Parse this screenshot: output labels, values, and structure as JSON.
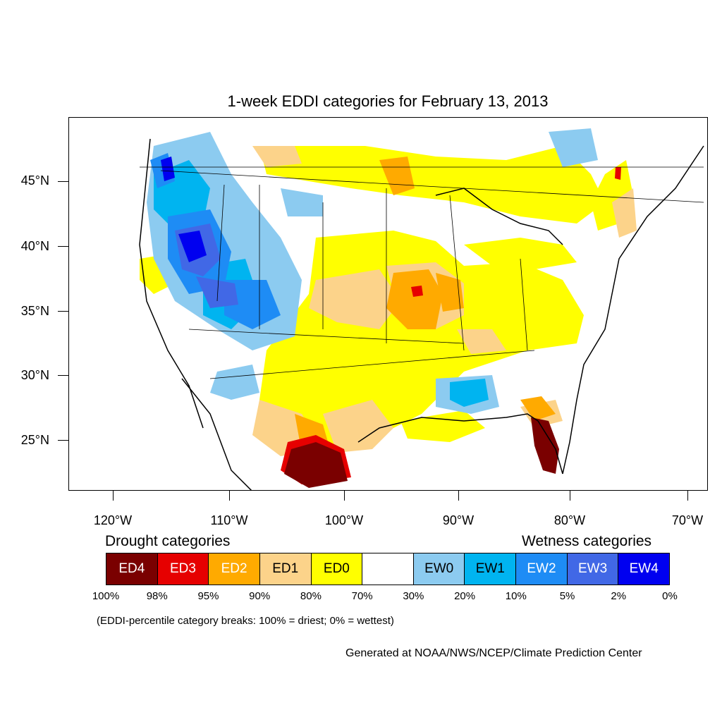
{
  "title": "1-week EDDI categories for February 13, 2013",
  "lat_labels": [
    "45°N",
    "40°N",
    "35°N",
    "30°N",
    "25°N"
  ],
  "lon_labels": [
    "120°W",
    "110°W",
    "100°W",
    "90°W",
    "80°W",
    "70°W"
  ],
  "drought_heading": "Drought categories",
  "wetness_heading": "Wetness categories",
  "legend": [
    {
      "label": "ED4",
      "color": "#7a0000",
      "text_color": "#ffffff"
    },
    {
      "label": "ED3",
      "color": "#e60000",
      "text_color": "#ffffff"
    },
    {
      "label": "ED2",
      "color": "#ffaa00",
      "text_color": "#ffffff"
    },
    {
      "label": "ED1",
      "color": "#fcd38a",
      "text_color": "#000000"
    },
    {
      "label": "ED0",
      "color": "#ffff00",
      "text_color": "#000000"
    },
    {
      "label": "",
      "color": "#ffffff",
      "text_color": "#000000"
    },
    {
      "label": "EW0",
      "color": "#8ccbf0",
      "text_color": "#000000"
    },
    {
      "label": "EW1",
      "color": "#00b4f0",
      "text_color": "#000000"
    },
    {
      "label": "EW2",
      "color": "#1e8cf5",
      "text_color": "#ffffff"
    },
    {
      "label": "EW3",
      "color": "#4168e6",
      "text_color": "#ffffff"
    },
    {
      "label": "EW4",
      "color": "#0000f0",
      "text_color": "#ffffff"
    }
  ],
  "breaks": [
    "100%",
    "98%",
    "95%",
    "90%",
    "80%",
    "70%",
    "30%",
    "20%",
    "10%",
    "5%",
    "2%",
    "0%"
  ],
  "breaks_note": "(EDDI-percentile category breaks: 100% = driest; 0% = wettest)",
  "credit": "Generated at NOAA/NWS/NCEP/Climate Prediction Center"
}
